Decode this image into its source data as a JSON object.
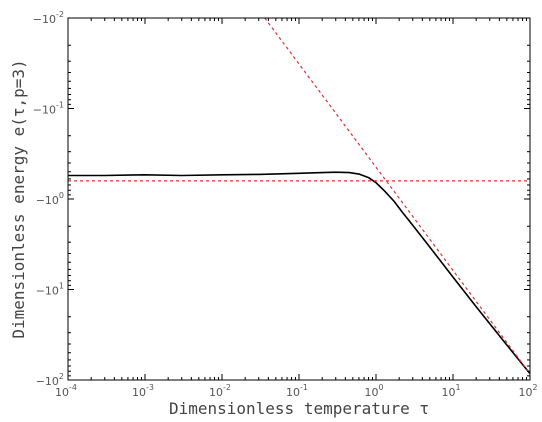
{
  "chart_data": {
    "type": "line",
    "xlabel": "Dimensionless temperature τ",
    "ylabel": "Dimensionless energy e(τ,p=3)",
    "x_scale": "log",
    "y_scale": "log-negative",
    "xlim": [
      0.0001,
      100
    ],
    "ylim": [
      -0.01,
      -100
    ],
    "x_ticks": [
      {
        "base": "10",
        "exp": "-4",
        "value": 0.0001
      },
      {
        "base": "10",
        "exp": "-3",
        "value": 0.001
      },
      {
        "base": "10",
        "exp": "-2",
        "value": 0.01
      },
      {
        "base": "10",
        "exp": "-1",
        "value": 0.1
      },
      {
        "base": "10",
        "exp": "0",
        "value": 1
      },
      {
        "base": "10",
        "exp": "1",
        "value": 10
      },
      {
        "base": "10",
        "exp": "2",
        "value": 100
      }
    ],
    "y_ticks": [
      {
        "base": "−10",
        "exp": "-2",
        "value": -0.01
      },
      {
        "base": "−10",
        "exp": "-1",
        "value": -0.1
      },
      {
        "base": "−10",
        "exp": "0",
        "value": -1
      },
      {
        "base": "−10",
        "exp": "1",
        "value": -10
      },
      {
        "base": "−10",
        "exp": "2",
        "value": -100
      }
    ],
    "grid": false,
    "series": [
      {
        "style": "solid",
        "color": "#000000",
        "x": [
          0.0001,
          0.0003,
          0.001,
          0.003,
          0.01,
          0.03,
          0.1,
          0.2,
          0.3,
          0.45,
          0.6,
          0.8,
          1.0,
          1.3,
          1.7,
          2.2,
          3,
          5,
          10,
          20,
          50,
          100
        ],
        "y": [
          -0.55,
          -0.55,
          -0.54,
          -0.55,
          -0.54,
          -0.535,
          -0.52,
          -0.51,
          -0.505,
          -0.51,
          -0.53,
          -0.58,
          -0.66,
          -0.82,
          -1.05,
          -1.4,
          -1.95,
          -3.4,
          -7.3,
          -15.5,
          -41,
          -85
        ]
      },
      {
        "style": "dashed",
        "color": "#e03030",
        "x": [
          0.0001,
          100
        ],
        "y": [
          -0.63,
          -0.63
        ]
      },
      {
        "style": "dashed",
        "color": "#e03030",
        "x": [
          0.0359,
          100
        ],
        "y": [
          -0.01,
          -85
        ]
      }
    ]
  }
}
